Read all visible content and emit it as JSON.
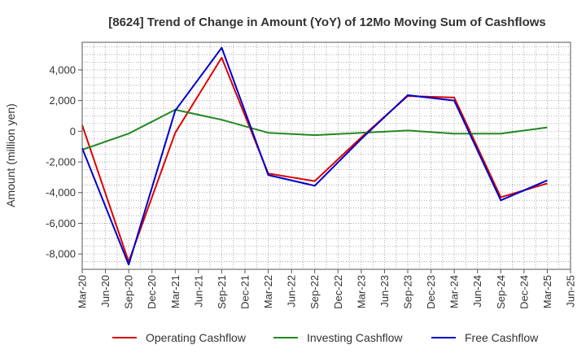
{
  "chart_data": {
    "type": "line",
    "title": "[8624]  Trend of Change in Amount (YoY) of 12Mo Moving Sum of Cashflows",
    "xlabel": "",
    "ylabel": "Amount (million yen)",
    "ylim": [
      -9000,
      5800
    ],
    "yticks": [
      4000,
      2000,
      0,
      -2000,
      -4000,
      -6000,
      -8000
    ],
    "ytick_labels": [
      "4,000",
      "2,000",
      "0",
      "-2,000",
      "-4,000",
      "-6,000",
      "-8,000"
    ],
    "x_labels": [
      "Mar-20",
      "Jun-20",
      "Sep-20",
      "Dec-20",
      "Mar-21",
      "Jun-21",
      "Sep-21",
      "Dec-21",
      "Mar-22",
      "Jun-22",
      "Sep-22",
      "Dec-22",
      "Mar-23",
      "Jun-23",
      "Sep-23",
      "Dec-23",
      "Mar-24",
      "Jun-24",
      "Sep-24",
      "Dec-24",
      "Mar-25",
      "Jun-25"
    ],
    "grid": true,
    "legend_position": "bottom",
    "series": [
      {
        "name": "Operating Cashflow",
        "color": "#dd0000",
        "values": [
          400,
          null,
          -8500,
          null,
          -100,
          null,
          4800,
          null,
          -2750,
          null,
          -3250,
          null,
          -400,
          null,
          2300,
          null,
          2200,
          null,
          -4300,
          null,
          -3400
        ]
      },
      {
        "name": "Investing Cashflow",
        "color": "#228822",
        "values": [
          -1200,
          null,
          -150,
          null,
          1400,
          null,
          750,
          null,
          -100,
          null,
          -250,
          null,
          -100,
          null,
          50,
          null,
          -150,
          null,
          -150,
          null,
          250
        ]
      },
      {
        "name": "Free Cashflow",
        "color": "#0000cc",
        "values": [
          -1100,
          null,
          -8700,
          null,
          1350,
          null,
          5450,
          null,
          -2850,
          null,
          -3550,
          null,
          -500,
          null,
          2350,
          null,
          2000,
          null,
          -4500,
          null,
          -3200
        ]
      }
    ]
  }
}
